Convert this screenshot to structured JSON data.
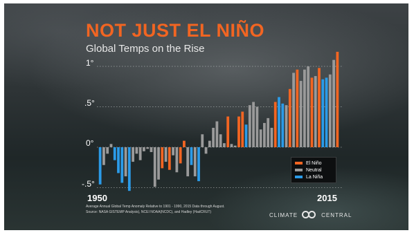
{
  "chart_data": {
    "type": "bar",
    "title": "NOT JUST EL NIÑO",
    "subtitle": "Global Temps on the Rise",
    "y_ticks": [
      "1°",
      ".5°",
      "0°",
      "-.5°"
    ],
    "ylim": [
      -0.6,
      1.2
    ],
    "x_ticks": [
      "1950",
      "2015"
    ],
    "x_start": 1950,
    "x_end": 2015,
    "colors": {
      "El Niño": "#f26522",
      "Neutral": "#9a9a9a",
      "La Niña": "#2b9be8"
    },
    "series_names": [
      "El Niño",
      "Neutral",
      "La Niña"
    ],
    "legend_position": "bottom-right",
    "values": [
      -0.46,
      -0.22,
      -0.08,
      0.04,
      -0.16,
      -0.32,
      -0.44,
      -0.36,
      -0.54,
      -0.18,
      -0.08,
      -0.16,
      -0.05,
      -0.02,
      -0.06,
      -0.49,
      -0.4,
      -0.26,
      -0.18,
      -0.28,
      -0.1,
      -0.31,
      -0.2,
      0.08,
      -0.36,
      -0.22,
      -0.36,
      -0.42,
      0.16,
      -0.08,
      0.08,
      0.24,
      0.32,
      0.16,
      0.05,
      0.38,
      0.04,
      0.02,
      0.38,
      0.44,
      0.28,
      0.52,
      0.56,
      0.5,
      0.22,
      0.3,
      0.36,
      0.24,
      0.56,
      0.62,
      0.54,
      0.52,
      0.72,
      0.92,
      0.96,
      0.82,
      0.96,
      1.0,
      0.86,
      0.88,
      0.98,
      0.84,
      0.86,
      0.9,
      1.08,
      1.18
    ],
    "phases": [
      "La Niña",
      "Neutral",
      "Neutral",
      "Neutral",
      "La Niña",
      "La Niña",
      "La Niña",
      "Neutral",
      "La Niña",
      "Neutral",
      "Neutral",
      "Neutral",
      "Neutral",
      "Neutral",
      "Neutral",
      "Neutral",
      "Neutral",
      "El Niño",
      "Neutral",
      "El Niño",
      "Neutral",
      "Neutral",
      "El Niño",
      "El Niño",
      "Neutral",
      "La Niña",
      "Neutral",
      "La Niña",
      "Neutral",
      "Neutral",
      "Neutral",
      "Neutral",
      "Neutral",
      "Neutral",
      "Neutral",
      "El Niño",
      "Neutral",
      "Neutral",
      "El Niño",
      "El Niño",
      "La Niña",
      "Neutral",
      "Neutral",
      "Neutral",
      "Neutral",
      "Neutral",
      "Neutral",
      "Neutral",
      "El Niño",
      "La Niña",
      "La Niña",
      "Neutral",
      "El Niño",
      "Neutral",
      "El Niño",
      "Neutral",
      "Neutral",
      "Neutral",
      "El Niño",
      "Neutral",
      "El Niño",
      "La Niña",
      "La Niña",
      "Neutral",
      "Neutral",
      "El Niño"
    ]
  },
  "notes": {
    "line1": "Average Annual Global Temp Anomaly Relative to 1901 - 1990, 2015 Data through August.",
    "line2": "Source: NASA GISTEMP Analysis), NCEI NOAA(NCDC), and Hadley (HadCRUT)"
  },
  "logo": {
    "left": "CLIMATE",
    "right": "CENTRAL"
  }
}
